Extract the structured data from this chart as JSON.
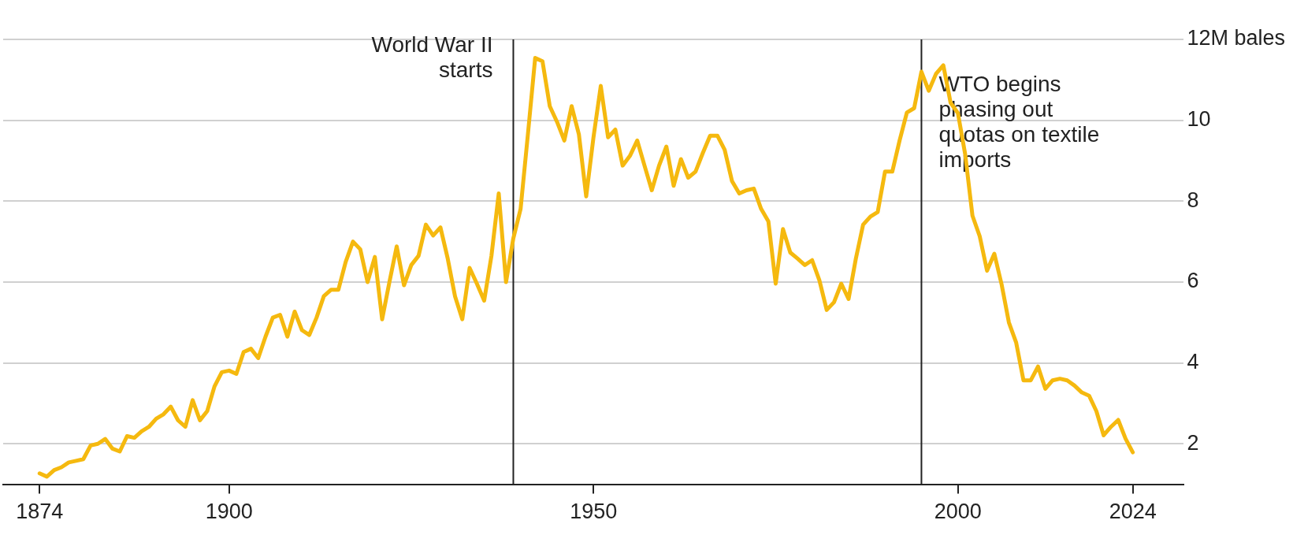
{
  "chart_data": {
    "type": "line",
    "x": [
      1874,
      1875,
      1876,
      1877,
      1878,
      1879,
      1880,
      1881,
      1882,
      1883,
      1884,
      1885,
      1886,
      1887,
      1888,
      1889,
      1890,
      1891,
      1892,
      1893,
      1894,
      1895,
      1896,
      1897,
      1898,
      1899,
      1900,
      1901,
      1902,
      1903,
      1904,
      1905,
      1906,
      1907,
      1908,
      1909,
      1910,
      1911,
      1912,
      1913,
      1914,
      1915,
      1916,
      1917,
      1918,
      1919,
      1920,
      1921,
      1922,
      1923,
      1924,
      1925,
      1926,
      1927,
      1928,
      1929,
      1930,
      1931,
      1932,
      1933,
      1934,
      1935,
      1936,
      1937,
      1938,
      1939,
      1940,
      1941,
      1942,
      1943,
      1944,
      1945,
      1946,
      1947,
      1948,
      1949,
      1950,
      1951,
      1952,
      1953,
      1954,
      1955,
      1956,
      1957,
      1958,
      1959,
      1960,
      1961,
      1962,
      1963,
      1964,
      1965,
      1966,
      1967,
      1968,
      1969,
      1970,
      1971,
      1972,
      1973,
      1974,
      1975,
      1976,
      1977,
      1978,
      1979,
      1980,
      1981,
      1982,
      1983,
      1984,
      1985,
      1986,
      1987,
      1988,
      1989,
      1990,
      1991,
      1992,
      1993,
      1994,
      1995,
      1996,
      1997,
      1998,
      1999,
      2000,
      2001,
      2002,
      2003,
      2004,
      2005,
      2006,
      2007,
      2008,
      2009,
      2010,
      2011,
      2012,
      2013,
      2014,
      2015,
      2016,
      2017,
      2018,
      2019,
      2020,
      2021,
      2022,
      2023,
      2024
    ],
    "series": [
      {
        "color": "#f5b90f",
        "values": [
          1.27,
          1.19,
          1.35,
          1.42,
          1.54,
          1.58,
          1.62,
          1.96,
          2.0,
          2.12,
          1.88,
          1.81,
          2.19,
          2.15,
          2.31,
          2.42,
          2.62,
          2.73,
          2.92,
          2.58,
          2.42,
          3.08,
          2.58,
          2.81,
          3.42,
          3.77,
          3.81,
          3.73,
          4.27,
          4.35,
          4.12,
          4.65,
          5.12,
          5.19,
          4.65,
          5.27,
          4.81,
          4.69,
          5.12,
          5.65,
          5.81,
          5.81,
          6.5,
          7.0,
          6.81,
          6.0,
          6.62,
          5.08,
          6.0,
          6.88,
          5.92,
          6.42,
          6.65,
          7.42,
          7.15,
          7.35,
          6.58,
          5.65,
          5.08,
          6.35,
          5.96,
          5.54,
          6.65,
          8.19,
          6.0,
          7.08,
          7.81,
          9.65,
          11.54,
          11.46,
          10.35,
          9.96,
          9.5,
          10.35,
          9.65,
          8.12,
          9.58,
          10.85,
          9.58,
          9.77,
          8.88,
          9.12,
          9.5,
          8.88,
          8.27,
          8.88,
          9.35,
          8.38,
          9.04,
          8.58,
          8.73,
          9.19,
          9.62,
          9.62,
          9.27,
          8.5,
          8.19,
          8.27,
          8.31,
          7.81,
          7.5,
          5.96,
          7.31,
          6.73,
          6.58,
          6.42,
          6.54,
          6.04,
          5.31,
          5.5,
          5.96,
          5.58,
          6.58,
          7.42,
          7.62,
          7.73,
          8.73,
          8.73,
          9.5,
          10.19,
          10.3,
          11.2,
          10.73,
          11.15,
          11.36,
          10.43,
          10.18,
          9.16,
          7.64,
          7.13,
          6.28,
          6.7,
          5.94,
          5.0,
          4.5,
          3.57,
          3.57,
          3.91,
          3.36,
          3.57,
          3.61,
          3.57,
          3.44,
          3.27,
          3.19,
          2.81,
          2.21,
          2.42,
          2.59,
          2.13,
          1.79
        ]
      }
    ],
    "xlim": [
      1869,
      2031
    ],
    "xticks": [
      1874,
      1900,
      1950,
      2000,
      2024
    ],
    "ylim": [
      1,
      12
    ],
    "yticks": [
      2,
      4,
      6,
      8,
      10,
      {
        "value": 12,
        "label": "12M bales"
      }
    ],
    "grid": "y",
    "line_style": "solid",
    "ref_lines": [
      {
        "axis": "x",
        "value": 1939,
        "label": "World War II starts",
        "color": "#222222"
      },
      {
        "axis": "x",
        "value": 1995,
        "label": "WTO begins phasing out quotas on textile imports",
        "color": "#222222"
      }
    ]
  }
}
